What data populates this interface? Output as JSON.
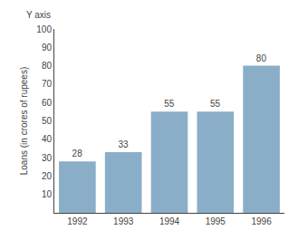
{
  "chart_data": {
    "type": "bar",
    "categories": [
      "1992",
      "1993",
      "1994",
      "1995",
      "1996"
    ],
    "values": [
      28,
      33,
      55,
      55,
      80
    ],
    "color": "#8aaec8",
    "ylabel": "Loans (in crores of rupees)",
    "annotations": [
      "Y axis"
    ],
    "ylim": [
      0,
      100
    ],
    "yticks": [
      10,
      20,
      30,
      40,
      50,
      60,
      70,
      80,
      90,
      100
    ],
    "data_labels": true,
    "grid": false
  }
}
